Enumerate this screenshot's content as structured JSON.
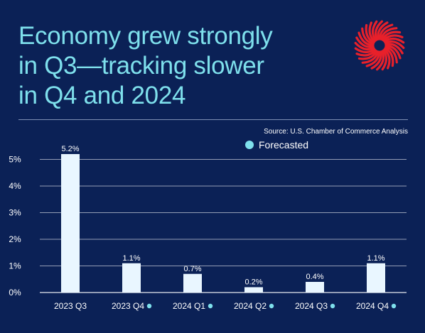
{
  "title_lines": [
    "Economy grew strongly",
    "in Q3—tracking slower",
    "in Q4 and 2024"
  ],
  "source": "Source: U.S. Chamber of Commerce Analysis",
  "legend_label": "Forecasted",
  "colors": {
    "background": "#0b2156",
    "title": "#7ee0ec",
    "bar": "#e9f6ff",
    "forecast_dot": "#7ee0ec",
    "logo": "#e8202a",
    "grid": "#ffffff"
  },
  "icons": {
    "logo": "red-radial-burst-logo-icon",
    "forecast_marker": "dot-icon"
  },
  "chart_data": {
    "type": "bar",
    "categories": [
      "2023 Q3",
      "2023 Q4",
      "2024 Q1",
      "2024 Q2",
      "2024 Q3",
      "2024 Q4"
    ],
    "values": [
      5.2,
      1.1,
      0.7,
      0.2,
      0.4,
      1.1
    ],
    "value_labels": [
      "5.2%",
      "1.1%",
      "0.7%",
      "0.2%",
      "0.4%",
      "1.1%"
    ],
    "forecasted": [
      false,
      true,
      true,
      true,
      true,
      true
    ],
    "yticks": [
      "0%",
      "1%",
      "2%",
      "3%",
      "4%",
      "5%"
    ],
    "ylim": [
      0,
      5.5
    ],
    "grid": true,
    "legend": "top-right"
  }
}
